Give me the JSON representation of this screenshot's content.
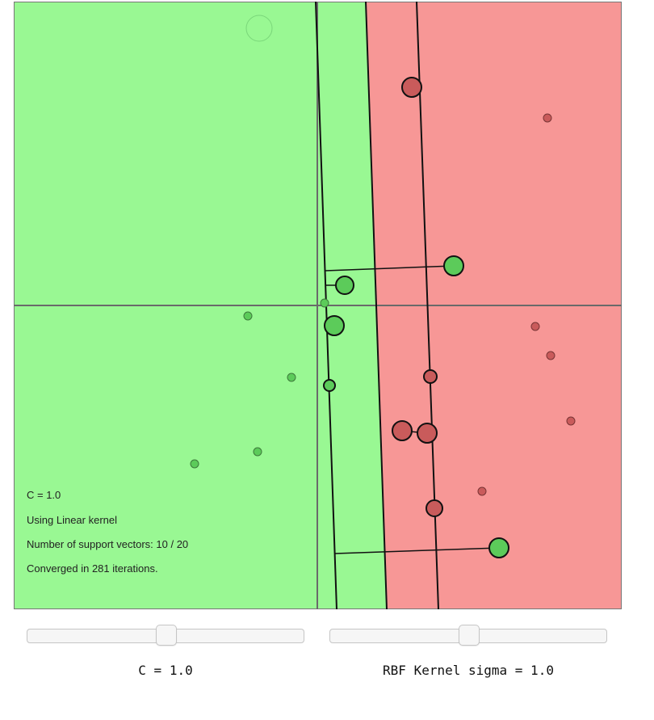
{
  "status": {
    "c_line": "C = 1.0",
    "kernel_line": "Using Linear kernel",
    "support_vectors_line": "Number of support vectors: 10 / 20",
    "iterations_line": "Converged in 281 iterations."
  },
  "controls": {
    "c_slider": {
      "label": "C = 1.0",
      "fraction": 0.5
    },
    "sigma_slider": {
      "label": "RBF Kernel sigma = 1.0",
      "fraction": 0.5
    }
  },
  "colors": {
    "positive_region": "#99f893",
    "negative_region": "#f79796",
    "positive_point": "#5ccb5a",
    "negative_point": "#c95b5b",
    "axis": "#6a6a6a",
    "line": "#111111"
  }
}
